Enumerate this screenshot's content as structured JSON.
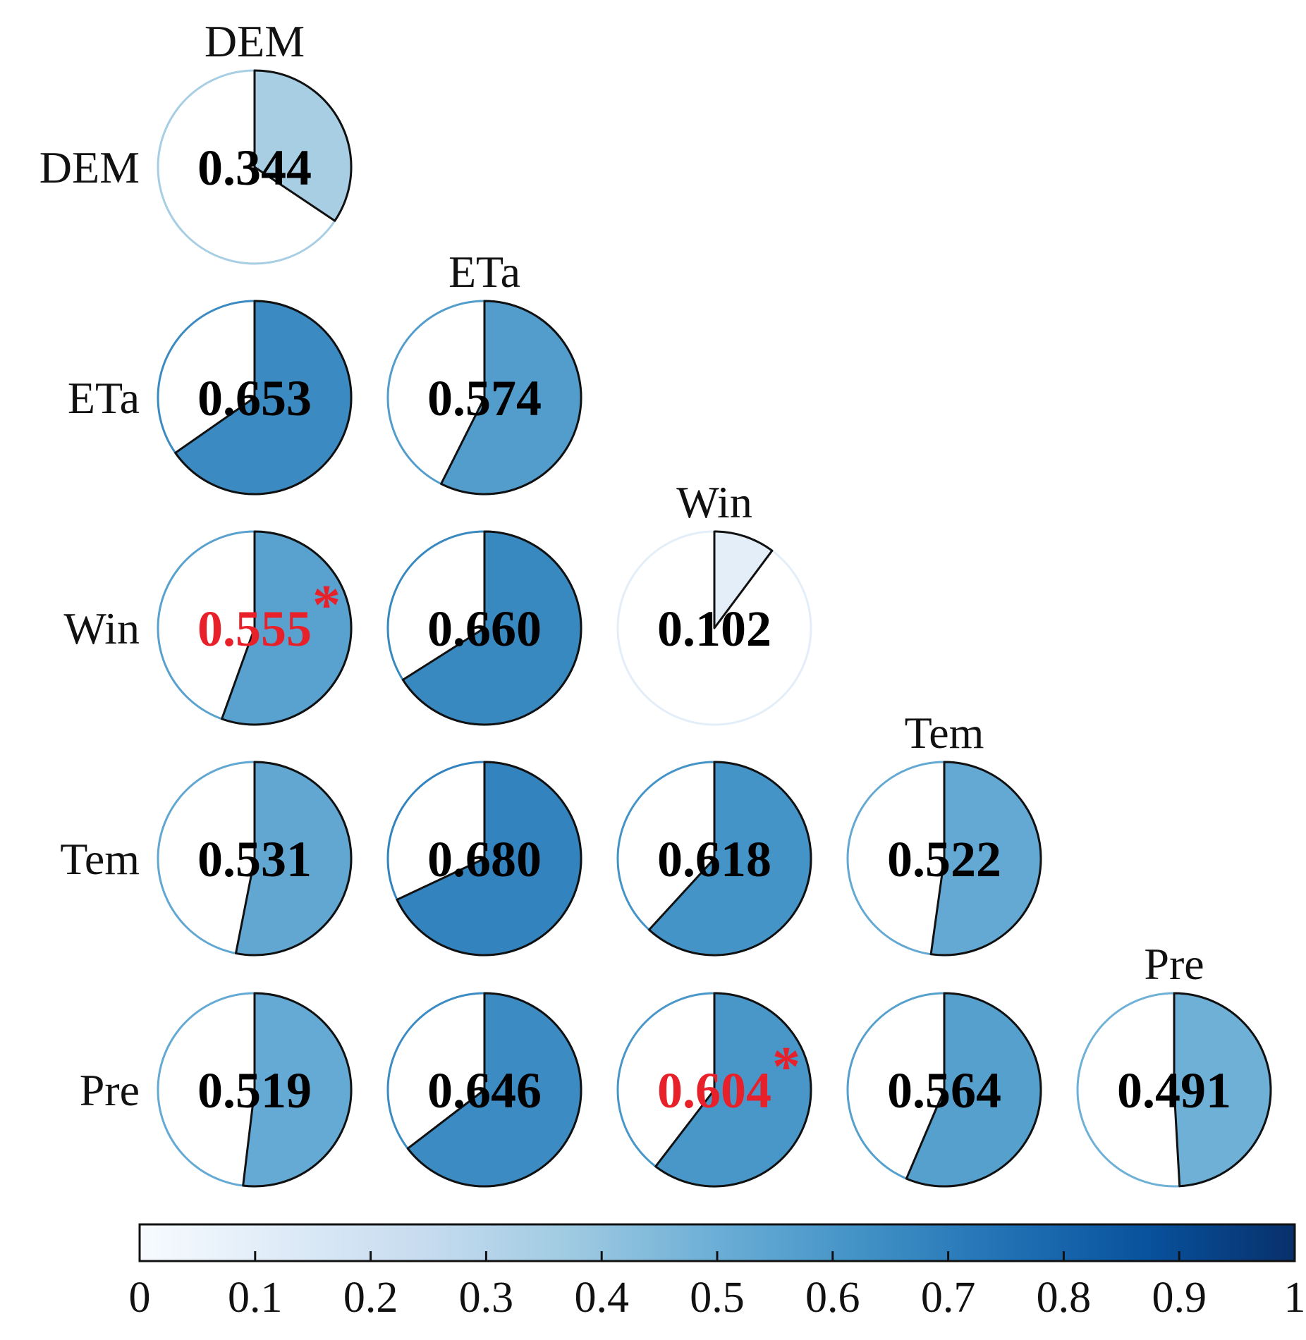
{
  "chart_data": {
    "type": "pie-correlation-matrix",
    "variables": [
      "DEM",
      "ETa",
      "Win",
      "Tem",
      "Pre"
    ],
    "cells": [
      {
        "row": "DEM",
        "col": "DEM",
        "value": 0.344,
        "label": "0.344",
        "significant": false
      },
      {
        "row": "ETa",
        "col": "DEM",
        "value": 0.653,
        "label": "0.653",
        "significant": false
      },
      {
        "row": "ETa",
        "col": "ETa",
        "value": 0.574,
        "label": "0.574",
        "significant": false
      },
      {
        "row": "Win",
        "col": "DEM",
        "value": 0.555,
        "label": "0.555",
        "significant": true
      },
      {
        "row": "Win",
        "col": "ETa",
        "value": 0.66,
        "label": "0.660",
        "significant": false
      },
      {
        "row": "Win",
        "col": "Win",
        "value": 0.102,
        "label": "0.102",
        "significant": false
      },
      {
        "row": "Tem",
        "col": "DEM",
        "value": 0.531,
        "label": "0.531",
        "significant": false
      },
      {
        "row": "Tem",
        "col": "ETa",
        "value": 0.68,
        "label": "0.680",
        "significant": false
      },
      {
        "row": "Tem",
        "col": "Win",
        "value": 0.618,
        "label": "0.618",
        "significant": false
      },
      {
        "row": "Tem",
        "col": "Tem",
        "value": 0.522,
        "label": "0.522",
        "significant": false
      },
      {
        "row": "Pre",
        "col": "DEM",
        "value": 0.519,
        "label": "0.519",
        "significant": false
      },
      {
        "row": "Pre",
        "col": "ETa",
        "value": 0.646,
        "label": "0.646",
        "significant": false
      },
      {
        "row": "Pre",
        "col": "Win",
        "value": 0.604,
        "label": "0.604",
        "significant": true
      },
      {
        "row": "Pre",
        "col": "Tem",
        "value": 0.564,
        "label": "0.564",
        "significant": false
      },
      {
        "row": "Pre",
        "col": "Pre",
        "value": 0.491,
        "label": "0.491",
        "significant": false
      }
    ],
    "significance_marker": "*",
    "colorbar": {
      "min": 0,
      "max": 1,
      "ticks": [
        "0",
        "0.1",
        "0.2",
        "0.3",
        "0.4",
        "0.5",
        "0.6",
        "0.7",
        "0.8",
        "0.9",
        "1"
      ],
      "colormap": "Blues",
      "orientation": "horizontal",
      "placement": "bottom"
    },
    "colors": {
      "significant_text": "#e8202a",
      "normal_text": "#000000",
      "wedge_stroke": "#111111",
      "outline": "#5b9ec9"
    }
  }
}
